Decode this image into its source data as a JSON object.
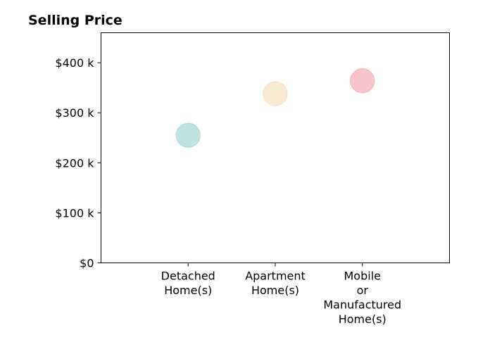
{
  "chart_data": {
    "type": "scatter",
    "title": "Selling Price",
    "xlabel": "",
    "ylabel": "",
    "categories": [
      [
        "Detached",
        "Home(s)"
      ],
      [
        "Apartment",
        "Home(s)"
      ],
      [
        "Mobile",
        "or",
        "Manufactured",
        "Home(s)"
      ]
    ],
    "values": [
      255000,
      338000,
      364000
    ],
    "ylim": [
      0,
      460000
    ],
    "yticks": [
      0,
      100000,
      200000,
      300000,
      400000
    ],
    "ytick_labels": [
      "$0",
      "$100 k",
      "$200 k",
      "$300 k",
      "$400 k"
    ],
    "xlim": [
      -1,
      3
    ],
    "grid": false,
    "legend": "none",
    "colors": [
      "#a8dbd5",
      "#f7e4bf",
      "#f5b3b8"
    ]
  }
}
